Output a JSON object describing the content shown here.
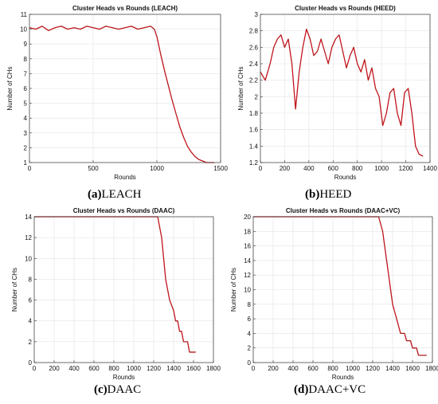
{
  "captions": [
    {
      "letter": "(a)",
      "text": "LEACH"
    },
    {
      "letter": "(b)",
      "text": "HEED"
    },
    {
      "letter": "(c)",
      "text": "DAAC"
    },
    {
      "letter": "(d)",
      "text": "DAAC+VC"
    }
  ],
  "colors": {
    "line": "#c0141c",
    "line_dark": "#7a3a1a",
    "grid": "#e3e3e3",
    "axis": "#333333"
  },
  "chart_data": [
    {
      "type": "line",
      "title": "Cluster Heads vs Rounds (LEACH)",
      "xlabel": "Rounds",
      "ylabel": "Number of CHs",
      "xlim": [
        0,
        1500
      ],
      "ylim": [
        1,
        11
      ],
      "xticks": [
        0,
        500,
        1000,
        1500
      ],
      "yticks": [
        1,
        2,
        3,
        4,
        5,
        6,
        7,
        8,
        9,
        10,
        11
      ],
      "grid": true,
      "series": [
        {
          "x": [
            0,
            50,
            100,
            150,
            200,
            250,
            300,
            350,
            400,
            450,
            500,
            550,
            600,
            650,
            700,
            750,
            800,
            850,
            900,
            950,
            980,
            1000,
            1030,
            1060,
            1090,
            1120,
            1150,
            1180,
            1210,
            1240,
            1270,
            1300,
            1330,
            1360,
            1390,
            1420,
            1450
          ],
          "y": [
            10.1,
            10.0,
            10.2,
            9.9,
            10.1,
            10.2,
            10.0,
            10.1,
            10.0,
            10.2,
            10.1,
            10.0,
            10.2,
            10.1,
            10.0,
            10.1,
            10.2,
            10.0,
            10.1,
            10.2,
            10.0,
            9.5,
            8.3,
            7.2,
            6.2,
            5.2,
            4.3,
            3.4,
            2.7,
            2.1,
            1.7,
            1.4,
            1.2,
            1.1,
            1.0,
            1.0,
            1.0
          ]
        }
      ]
    },
    {
      "type": "line",
      "title": "Cluster Heads vs Rounds (HEED)",
      "xlabel": "Rounds",
      "ylabel": "Number of CHs",
      "xlim": [
        0,
        1400
      ],
      "ylim": [
        1.2,
        3
      ],
      "xticks": [
        0,
        200,
        400,
        600,
        800,
        1000,
        1200,
        1400
      ],
      "yticks": [
        1.2,
        1.4,
        1.6,
        1.8,
        2,
        2.2,
        2.4,
        2.6,
        2.8,
        3
      ],
      "grid": true,
      "series": [
        {
          "x": [
            0,
            40,
            80,
            110,
            140,
            170,
            200,
            230,
            260,
            290,
            320,
            350,
            380,
            410,
            440,
            470,
            500,
            530,
            560,
            590,
            620,
            650,
            680,
            710,
            740,
            770,
            800,
            830,
            860,
            890,
            920,
            950,
            980,
            1010,
            1040,
            1070,
            1100,
            1130,
            1160,
            1190,
            1220,
            1250,
            1280,
            1310,
            1340
          ],
          "y": [
            2.3,
            2.2,
            2.4,
            2.6,
            2.7,
            2.75,
            2.6,
            2.7,
            2.4,
            1.85,
            2.3,
            2.6,
            2.82,
            2.7,
            2.5,
            2.55,
            2.7,
            2.55,
            2.4,
            2.6,
            2.7,
            2.75,
            2.55,
            2.35,
            2.5,
            2.6,
            2.4,
            2.3,
            2.45,
            2.2,
            2.35,
            2.1,
            2.0,
            1.65,
            1.8,
            2.05,
            2.1,
            1.8,
            1.65,
            2.05,
            2.1,
            1.8,
            1.4,
            1.3,
            1.28
          ]
        }
      ]
    },
    {
      "type": "line",
      "title": "Cluster Heads vs Rounds (DAAC)",
      "xlabel": "Rounds",
      "ylabel": "Number of CHs",
      "xlim": [
        0,
        1800
      ],
      "ylim": [
        0,
        14
      ],
      "xticks": [
        0,
        200,
        400,
        600,
        800,
        1000,
        1200,
        1400,
        1600,
        1800
      ],
      "yticks": [
        0,
        2,
        4,
        6,
        8,
        10,
        12,
        14
      ],
      "grid": true,
      "series": [
        {
          "x": [
            0,
            1240,
            1260,
            1280,
            1300,
            1320,
            1340,
            1360,
            1380,
            1400,
            1420,
            1440,
            1460,
            1480,
            1500,
            1520,
            1540,
            1560,
            1580,
            1600,
            1620
          ],
          "y": [
            14,
            14,
            13,
            12,
            10,
            8,
            7,
            6,
            5.5,
            5,
            4,
            4,
            3,
            3,
            2,
            2,
            2,
            1,
            1,
            1,
            1
          ]
        }
      ]
    },
    {
      "type": "line",
      "title": "Cluster Heads vs Rounds (DAAC+VC)",
      "xlabel": "Rounds",
      "ylabel": "Number of CHs",
      "xlim": [
        0,
        1800
      ],
      "ylim": [
        0,
        20
      ],
      "xticks": [
        0,
        200,
        400,
        600,
        800,
        1000,
        1200,
        1400,
        1600,
        1800
      ],
      "yticks": [
        0,
        2,
        4,
        6,
        8,
        10,
        12,
        14,
        16,
        18,
        20
      ],
      "grid": true,
      "series": [
        {
          "x": [
            0,
            1260,
            1280,
            1300,
            1320,
            1340,
            1360,
            1380,
            1400,
            1420,
            1440,
            1460,
            1480,
            1500,
            1520,
            1540,
            1560,
            1580,
            1600,
            1620,
            1640,
            1660,
            1680,
            1700,
            1720,
            1740
          ],
          "y": [
            20,
            20,
            19,
            18,
            16,
            14,
            12,
            10,
            8,
            7,
            6,
            5,
            4,
            4,
            4,
            3,
            3,
            3,
            2,
            2,
            2,
            1,
            1,
            1,
            1,
            1
          ]
        }
      ]
    }
  ]
}
